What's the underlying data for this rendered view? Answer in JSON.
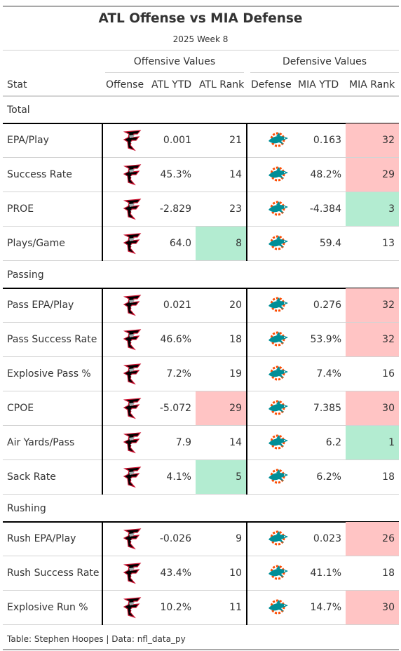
{
  "title": "ATL Offense vs MIA Defense",
  "subtitle": "2025 Week 8",
  "spanners": {
    "offense": "Offensive Values",
    "defense": "Defensive Values"
  },
  "columns": {
    "stat": "Stat",
    "offense": "Offense",
    "atl_ytd": "ATL YTD",
    "atl_rank": "ATL Rank",
    "defense": "Defense",
    "mia_ytd": "MIA YTD",
    "mia_rank": "MIA Rank"
  },
  "colors": {
    "good": "#b3ecd1",
    "bad": "#ffc4c4",
    "border": "#000000",
    "rule": "#d3d3d3"
  },
  "icons": {
    "offense": "falcons-logo-icon",
    "defense": "dolphins-logo-icon"
  },
  "groups": [
    {
      "name": "Total",
      "rows": [
        {
          "stat": "EPA/Play",
          "atl_ytd": "0.001",
          "atl_rank": "21",
          "atl_color": "",
          "mia_ytd": "0.163",
          "mia_rank": "32",
          "mia_color": "#ffc4c4"
        },
        {
          "stat": "Success Rate",
          "atl_ytd": "45.3%",
          "atl_rank": "14",
          "atl_color": "",
          "mia_ytd": "48.2%",
          "mia_rank": "29",
          "mia_color": "#ffc4c4"
        },
        {
          "stat": "PROE",
          "atl_ytd": "-2.829",
          "atl_rank": "23",
          "atl_color": "",
          "mia_ytd": "-4.384",
          "mia_rank": "3",
          "mia_color": "#b3ecd1"
        },
        {
          "stat": "Plays/Game",
          "atl_ytd": "64.0",
          "atl_rank": "8",
          "atl_color": "#b3ecd1",
          "mia_ytd": "59.4",
          "mia_rank": "13",
          "mia_color": ""
        }
      ]
    },
    {
      "name": "Passing",
      "rows": [
        {
          "stat": "Pass EPA/Play",
          "atl_ytd": "0.021",
          "atl_rank": "20",
          "atl_color": "",
          "mia_ytd": "0.276",
          "mia_rank": "32",
          "mia_color": "#ffc4c4"
        },
        {
          "stat": "Pass Success Rate",
          "atl_ytd": "46.6%",
          "atl_rank": "18",
          "atl_color": "",
          "mia_ytd": "53.9%",
          "mia_rank": "32",
          "mia_color": "#ffc4c4"
        },
        {
          "stat": "Explosive Pass %",
          "atl_ytd": "7.2%",
          "atl_rank": "19",
          "atl_color": "",
          "mia_ytd": "7.4%",
          "mia_rank": "16",
          "mia_color": ""
        },
        {
          "stat": "CPOE",
          "atl_ytd": "-5.072",
          "atl_rank": "29",
          "atl_color": "#ffc4c4",
          "mia_ytd": "7.385",
          "mia_rank": "30",
          "mia_color": "#ffc4c4"
        },
        {
          "stat": "Air Yards/Pass",
          "atl_ytd": "7.9",
          "atl_rank": "14",
          "atl_color": "",
          "mia_ytd": "6.2",
          "mia_rank": "1",
          "mia_color": "#b3ecd1"
        },
        {
          "stat": "Sack Rate",
          "atl_ytd": "4.1%",
          "atl_rank": "5",
          "atl_color": "#b3ecd1",
          "mia_ytd": "6.2%",
          "mia_rank": "18",
          "mia_color": ""
        }
      ]
    },
    {
      "name": "Rushing",
      "rows": [
        {
          "stat": "Rush EPA/Play",
          "atl_ytd": "-0.026",
          "atl_rank": "9",
          "atl_color": "",
          "mia_ytd": "0.023",
          "mia_rank": "26",
          "mia_color": "#ffc4c4"
        },
        {
          "stat": "Rush Success Rate",
          "atl_ytd": "43.4%",
          "atl_rank": "10",
          "atl_color": "",
          "mia_ytd": "41.1%",
          "mia_rank": "18",
          "mia_color": ""
        },
        {
          "stat": "Explosive Run %",
          "atl_ytd": "10.2%",
          "atl_rank": "11",
          "atl_color": "",
          "mia_ytd": "14.7%",
          "mia_rank": "30",
          "mia_color": "#ffc4c4"
        }
      ]
    }
  ],
  "footer": "Table: Stephen Hoopes | Data: nfl_data_py"
}
